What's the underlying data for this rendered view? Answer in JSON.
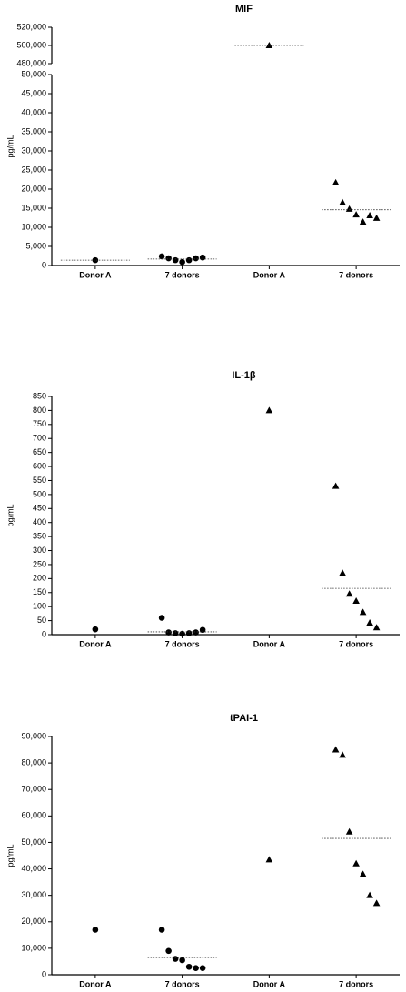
{
  "chart_data": [
    {
      "type": "dotplot",
      "title": "MIF",
      "y_label": "pg/mL",
      "categories": [
        "Donor A",
        "7 donors",
        "Donor A",
        "7 donors"
      ],
      "markers": [
        "circle",
        "circle",
        "triangle",
        "triangle"
      ],
      "color": "#000000",
      "values": [
        [
          1400
        ],
        [
          2400,
          1900,
          1400,
          900,
          1400,
          1900,
          2100
        ],
        [
          500000
        ],
        [
          21700,
          16500,
          14800,
          13300,
          11400,
          13100,
          12400
        ]
      ],
      "medians": [
        1400,
        1700,
        500000,
        14600
      ],
      "ylim": [
        0,
        50000
      ],
      "yticks": [
        0,
        {
          "value": 5000,
          "label": "5,000"
        },
        {
          "value": 10000,
          "label": "10,000"
        },
        {
          "value": 15000,
          "label": "15,000"
        },
        {
          "value": 20000,
          "label": "20,000"
        },
        {
          "value": 25000,
          "label": "25,000"
        },
        {
          "value": 30000,
          "label": "30,000"
        },
        {
          "value": 35000,
          "label": "35,000"
        },
        {
          "value": 40000,
          "label": "40,000"
        },
        {
          "value": 45000,
          "label": "45,000"
        },
        {
          "value": 50000,
          "label": "50,000"
        }
      ],
      "y_break_lim": [
        480000,
        520000
      ],
      "y_break_ticks": [
        {
          "value": 480000,
          "label": "480,000"
        },
        {
          "value": 500000,
          "label": "500,000"
        },
        {
          "value": 520000,
          "label": "520,000"
        }
      ]
    },
    {
      "type": "dotplot",
      "title": "IL-1β",
      "y_label": "pg/mL",
      "categories": [
        "Donor A",
        "7 donors",
        "Donor A",
        "7 donors"
      ],
      "markers": [
        "circle",
        "circle",
        "triangle",
        "triangle"
      ],
      "color": "#000000",
      "values": [
        [
          19
        ],
        [
          60,
          8,
          5,
          3,
          5,
          8,
          17
        ],
        [
          800
        ],
        [
          530,
          220,
          145,
          120,
          80,
          42,
          25
        ]
      ],
      "medians": [
        null,
        10,
        null,
        165
      ],
      "ylim": [
        0,
        850
      ],
      "yticks": [
        0,
        50,
        100,
        150,
        200,
        250,
        300,
        350,
        400,
        450,
        500,
        550,
        600,
        650,
        700,
        750,
        800,
        850
      ]
    },
    {
      "type": "dotplot",
      "title": "tPAI-1",
      "y_label": "pg/mL",
      "categories": [
        "Donor A",
        "7 donors",
        "Donor A",
        "7 donors"
      ],
      "markers": [
        "circle",
        "circle",
        "triangle",
        "triangle"
      ],
      "color": "#000000",
      "values": [
        [
          17000
        ],
        [
          17000,
          9000,
          6000,
          5500,
          3000,
          2500,
          2500
        ],
        [
          43500
        ],
        [
          85000,
          83000,
          54000,
          42000,
          38000,
          30000,
          27000
        ]
      ],
      "medians": [
        null,
        6500,
        null,
        51500
      ],
      "ylim": [
        0,
        90000
      ],
      "yticks": [
        0,
        {
          "value": 10000,
          "label": "10,000"
        },
        {
          "value": 20000,
          "label": "20,000"
        },
        {
          "value": 30000,
          "label": "30,000"
        },
        {
          "value": 40000,
          "label": "40,000"
        },
        {
          "value": 50000,
          "label": "50,000"
        },
        {
          "value": 60000,
          "label": "60,000"
        },
        {
          "value": 70000,
          "label": "70,000"
        },
        {
          "value": 80000,
          "label": "80,000"
        },
        {
          "value": 90000,
          "label": "90,000"
        }
      ]
    }
  ]
}
